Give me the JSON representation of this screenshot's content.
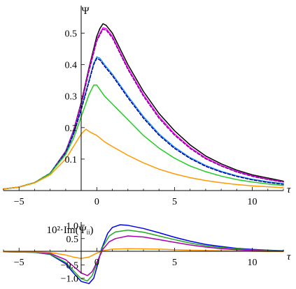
{
  "chart_data": [
    {
      "type": "line",
      "ylabel": "Ψ",
      "xlabel": "τ",
      "xlim": [
        -6,
        12
      ],
      "ylim": [
        0,
        0.55
      ],
      "xticks": [
        -5,
        0,
        5,
        10
      ],
      "xtick_labels": [
        "−5",
        "0",
        "5",
        "10"
      ],
      "yticks": [
        0.1,
        0.2,
        0.3,
        0.4,
        0.5
      ],
      "ytick_labels": [
        "0.1",
        "0.2",
        "0.3",
        "0.4",
        "0.5"
      ],
      "grid": false,
      "series": [
        {
          "color": "#000000",
          "style": "solid",
          "x": [
            -6,
            -5,
            -4,
            -3,
            -2,
            -1.5,
            -1,
            -0.5,
            0,
            0.2,
            0.4,
            0.6,
            1,
            1.5,
            2,
            3,
            4,
            5,
            6,
            7,
            8,
            9,
            10,
            11,
            12
          ],
          "y": [
            0.005,
            0.011,
            0.025,
            0.055,
            0.125,
            0.19,
            0.28,
            0.39,
            0.49,
            0.515,
            0.53,
            0.525,
            0.5,
            0.45,
            0.4,
            0.315,
            0.245,
            0.19,
            0.145,
            0.11,
            0.085,
            0.065,
            0.05,
            0.04,
            0.03
          ]
        },
        {
          "color": "#ff00ff",
          "style": "solid",
          "x": [
            -6,
            -5,
            -4,
            -3,
            -2,
            -1.5,
            -1,
            -0.5,
            0,
            0.2,
            0.4,
            0.6,
            1,
            1.5,
            2,
            3,
            4,
            5,
            6,
            7,
            8,
            9,
            10,
            11,
            12
          ],
          "y": [
            0.005,
            0.011,
            0.025,
            0.055,
            0.124,
            0.188,
            0.276,
            0.385,
            0.48,
            0.5,
            0.517,
            0.515,
            0.49,
            0.44,
            0.39,
            0.305,
            0.235,
            0.18,
            0.137,
            0.104,
            0.08,
            0.061,
            0.047,
            0.036,
            0.028
          ]
        },
        {
          "color": "#7a0b8f",
          "style": "dashed",
          "x": [
            -6,
            -5,
            -4,
            -3,
            -2,
            -1.5,
            -1,
            -0.5,
            0,
            0.2,
            0.4,
            0.6,
            1,
            1.5,
            2,
            3,
            4,
            5,
            6,
            7,
            8,
            9,
            10,
            11,
            12
          ],
          "y": [
            0.005,
            0.011,
            0.025,
            0.055,
            0.123,
            0.186,
            0.273,
            0.38,
            0.475,
            0.495,
            0.512,
            0.51,
            0.485,
            0.435,
            0.385,
            0.3,
            0.23,
            0.176,
            0.134,
            0.101,
            0.078,
            0.059,
            0.045,
            0.035,
            0.027
          ]
        },
        {
          "color": "#1e90ff",
          "style": "solid",
          "x": [
            -6,
            -5,
            -4,
            -3,
            -2,
            -1.5,
            -1,
            -0.5,
            -0.2,
            0,
            0.2,
            0.5,
            1,
            1.5,
            2,
            3,
            4,
            5,
            6,
            7,
            8,
            9,
            10,
            11,
            12
          ],
          "y": [
            0.005,
            0.011,
            0.025,
            0.055,
            0.12,
            0.18,
            0.26,
            0.35,
            0.405,
            0.425,
            0.42,
            0.4,
            0.37,
            0.335,
            0.3,
            0.235,
            0.18,
            0.138,
            0.105,
            0.08,
            0.061,
            0.047,
            0.036,
            0.028,
            0.022
          ]
        },
        {
          "color": "#00008b",
          "style": "dashed",
          "x": [
            -6,
            -5,
            -4,
            -3,
            -2,
            -1.5,
            -1,
            -0.5,
            -0.2,
            0,
            0.2,
            0.5,
            1,
            1.5,
            2,
            3,
            4,
            5,
            6,
            7,
            8,
            9,
            10,
            11,
            12
          ],
          "y": [
            0.005,
            0.011,
            0.025,
            0.055,
            0.119,
            0.178,
            0.257,
            0.346,
            0.4,
            0.42,
            0.415,
            0.395,
            0.365,
            0.33,
            0.295,
            0.23,
            0.176,
            0.134,
            0.102,
            0.077,
            0.059,
            0.045,
            0.034,
            0.026,
            0.02
          ]
        },
        {
          "color": "#22cc22",
          "style": "solid",
          "x": [
            -6,
            -5,
            -4,
            -3,
            -2,
            -1.5,
            -1,
            -0.5,
            -0.2,
            0,
            0.5,
            1,
            1.5,
            2,
            3,
            4,
            5,
            6,
            7,
            8,
            9,
            10,
            11,
            12
          ],
          "y": [
            0.005,
            0.011,
            0.025,
            0.054,
            0.115,
            0.165,
            0.235,
            0.305,
            0.335,
            0.335,
            0.3,
            0.275,
            0.25,
            0.225,
            0.175,
            0.135,
            0.103,
            0.078,
            0.06,
            0.046,
            0.035,
            0.027,
            0.021,
            0.016
          ]
        },
        {
          "color": "#ff9900",
          "style": "solid",
          "x": [
            -6,
            -5,
            -4,
            -3,
            -2,
            -1.5,
            -1,
            -0.7,
            -0.4,
            0,
            0.5,
            1,
            2,
            3,
            4,
            5,
            6,
            7,
            8,
            9,
            10,
            11,
            12
          ],
          "y": [
            0.005,
            0.011,
            0.024,
            0.05,
            0.1,
            0.14,
            0.18,
            0.195,
            0.185,
            0.175,
            0.155,
            0.14,
            0.112,
            0.088,
            0.068,
            0.053,
            0.041,
            0.032,
            0.025,
            0.019,
            0.015,
            0.012,
            0.009
          ]
        }
      ]
    },
    {
      "type": "line",
      "ylabel": "10²·Im(Ψᵢᵢ)",
      "xlabel": "τ",
      "xlim": [
        -6,
        12
      ],
      "ylim": [
        -1.3,
        1.1
      ],
      "xticks": [
        -5,
        0,
        5,
        10
      ],
      "xtick_labels": [
        "−5",
        "0",
        "5",
        "10"
      ],
      "yticks": [
        -1.0,
        -0.5,
        0.5,
        1.0
      ],
      "ytick_labels": [
        "−1.0",
        "−0.5",
        "0.5",
        "1.0"
      ],
      "grid": false,
      "series": [
        {
          "color": "#0000ee",
          "style": "solid",
          "x": [
            -6,
            -4,
            -3,
            -2,
            -1.5,
            -1,
            -0.5,
            -0.2,
            0,
            0.3,
            0.7,
            1,
            1.5,
            2,
            3,
            4,
            5,
            6,
            7,
            8,
            9,
            10,
            11,
            12
          ],
          "y": [
            0,
            -0.02,
            -0.1,
            -0.45,
            -0.8,
            -1.12,
            -1.2,
            -1.0,
            -0.6,
            0.1,
            0.7,
            0.92,
            1.02,
            1.0,
            0.88,
            0.72,
            0.55,
            0.4,
            0.28,
            0.2,
            0.13,
            0.09,
            0.06,
            0.04
          ]
        },
        {
          "color": "#22aa22",
          "style": "solid",
          "x": [
            -6,
            -4,
            -3,
            -2,
            -1.5,
            -1,
            -0.6,
            -0.3,
            0,
            0.4,
            0.8,
            1.2,
            2,
            3,
            4,
            5,
            6,
            7,
            8,
            9,
            10,
            11,
            12
          ],
          "y": [
            0,
            -0.02,
            -0.09,
            -0.4,
            -0.72,
            -1.02,
            -1.1,
            -0.9,
            -0.45,
            0.2,
            0.6,
            0.75,
            0.82,
            0.74,
            0.6,
            0.46,
            0.33,
            0.23,
            0.16,
            0.11,
            0.07,
            0.05,
            0.03
          ]
        },
        {
          "color": "#aa00aa",
          "style": "solid",
          "x": [
            -6,
            -4,
            -3,
            -2,
            -1.5,
            -1,
            -0.6,
            -0.3,
            0,
            0.4,
            0.8,
            1.2,
            2,
            3,
            4,
            5,
            6,
            7,
            8,
            9,
            10,
            11,
            12
          ],
          "y": [
            0,
            -0.01,
            -0.06,
            -0.3,
            -0.55,
            -0.8,
            -0.9,
            -0.75,
            -0.4,
            0.1,
            0.38,
            0.5,
            0.6,
            0.56,
            0.46,
            0.36,
            0.26,
            0.18,
            0.12,
            0.08,
            0.05,
            0.035,
            0.02
          ]
        },
        {
          "color": "#ff9900",
          "style": "solid",
          "x": [
            -6,
            -4,
            -3,
            -2,
            -1.5,
            -1,
            -0.5,
            0,
            0.5,
            1,
            2,
            3,
            4,
            5,
            6,
            8,
            10,
            12
          ],
          "y": [
            0,
            -0.005,
            -0.03,
            -0.12,
            -0.2,
            -0.25,
            -0.2,
            -0.05,
            0.05,
            0.1,
            0.12,
            0.11,
            0.1,
            0.08,
            0.06,
            0.04,
            0.02,
            0.01
          ]
        }
      ]
    }
  ]
}
